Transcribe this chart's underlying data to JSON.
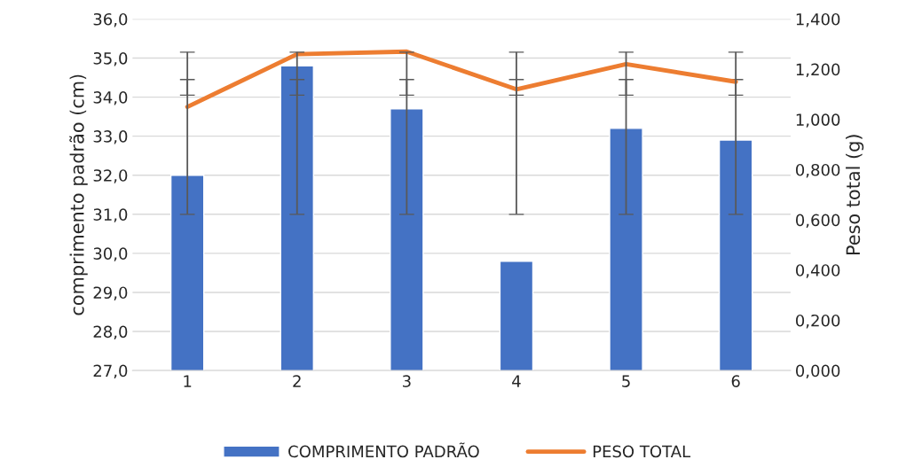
{
  "chart_data": {
    "type": "bar",
    "categories": [
      "1",
      "2",
      "3",
      "4",
      "5",
      "6"
    ],
    "ylabel": "comprimento padrão (cm)",
    "y2label": "Peso total (g)",
    "series": [
      {
        "name": "COMPRIMENTO PADRÃO",
        "color": "#4472c4",
        "values": [
          32.0,
          34.8,
          33.7,
          29.8,
          33.2,
          32.9
        ],
        "errors": [
          [
            34.05,
            34.45
          ],
          [
            34.05,
            34.45
          ],
          [
            34.05,
            34.45
          ],
          [
            34.05,
            34.45
          ],
          [
            34.05,
            34.45
          ],
          [
            34.05,
            34.45
          ]
        ]
      },
      {
        "name": "PESO TOTAL",
        "type": "line",
        "axis": "y2",
        "color": "#ed7d31",
        "values": [
          1.05,
          1.26,
          1.27,
          1.12,
          1.22,
          1.15
        ],
        "errors": [
          [
            0.622,
            1.268
          ],
          [
            0.622,
            1.268
          ],
          [
            0.622,
            1.268
          ],
          [
            0.622,
            1.268
          ],
          [
            0.622,
            1.268
          ],
          [
            0.622,
            1.268
          ]
        ]
      }
    ],
    "ylim": [
      27,
      36
    ],
    "yticks": [
      {
        "value": 27,
        "label": "27,0"
      },
      {
        "value": 28,
        "label": "28,0"
      },
      {
        "value": 29,
        "label": "29,0"
      },
      {
        "value": 30,
        "label": "30,0"
      },
      {
        "value": 31,
        "label": "31,0"
      },
      {
        "value": 32,
        "label": "32,0"
      },
      {
        "value": 33,
        "label": "33,0"
      },
      {
        "value": 34,
        "label": "34,0"
      },
      {
        "value": 35,
        "label": "35,0"
      },
      {
        "value": 36,
        "label": "36,0"
      }
    ],
    "y2lim": [
      0,
      1.4
    ],
    "y2ticks": [
      {
        "value": 0,
        "label": "0,000"
      },
      {
        "value": 0.2,
        "label": "0,200"
      },
      {
        "value": 0.4,
        "label": "0,400"
      },
      {
        "value": 0.6,
        "label": "0,600"
      },
      {
        "value": 0.8,
        "label": "0,800"
      },
      {
        "value": 1.0,
        "label": "1,000"
      },
      {
        "value": 1.2,
        "label": "1,200"
      },
      {
        "value": 1.4,
        "label": "1,400"
      }
    ],
    "grid": "y",
    "legend": "bottom"
  }
}
